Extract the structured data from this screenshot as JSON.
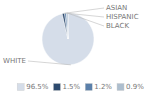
{
  "chart_data": {
    "type": "pie",
    "categories": [
      "WHITE",
      "ASIAN",
      "HISPANIC",
      "BLACK"
    ],
    "values": [
      96.5,
      1.5,
      1.2,
      0.9
    ],
    "value_labels": [
      "96.5%",
      "1.5%",
      "1.2%",
      "0.9%"
    ],
    "colors": [
      "#d5dde9",
      "#2d4a6e",
      "#5b80aa",
      "#adbece"
    ],
    "legend": "bottom"
  }
}
